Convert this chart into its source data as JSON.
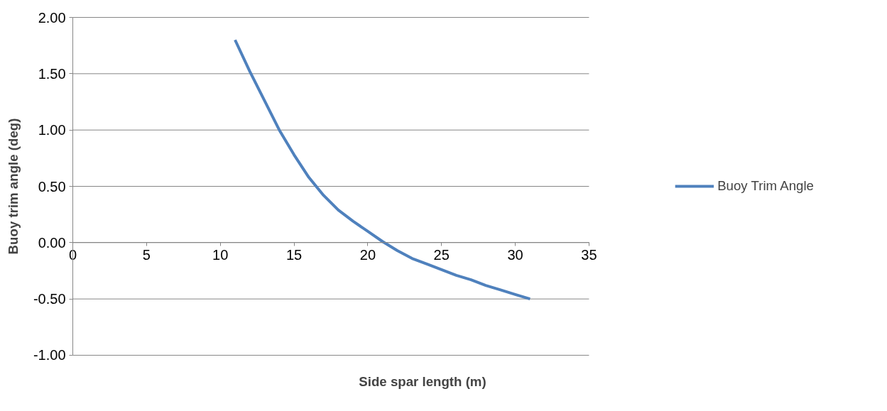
{
  "chart_data": {
    "type": "line",
    "xlabel": "Side spar length (m)",
    "ylabel": "Buoy trim angle (deg)",
    "xlim": [
      0,
      35
    ],
    "xticks": [
      0,
      5,
      10,
      15,
      20,
      25,
      30,
      35
    ],
    "ylim": [
      -1.0,
      2.0
    ],
    "yticks": [
      {
        "value": -1.0,
        "label": "-1.00"
      },
      {
        "value": -0.5,
        "label": "-0.50"
      },
      {
        "value": 0,
        "label": "0.00"
      },
      {
        "value": 0.5,
        "label": "0.50"
      },
      {
        "value": 1.0,
        "label": "1.00"
      },
      {
        "value": 1.5,
        "label": "1.50"
      },
      {
        "value": 2.0,
        "label": "2.00"
      }
    ],
    "grid": "y",
    "legend": "right",
    "marker": "none",
    "line_style": "solid",
    "series": [
      {
        "name": "Buoy Trim Angle",
        "color": "#4f81bd",
        "x": [
          11,
          12,
          13,
          14,
          15,
          16,
          17,
          18,
          19,
          20,
          21,
          22,
          23,
          24,
          25,
          26,
          27,
          28,
          29,
          30,
          31
        ],
        "values": [
          1.8,
          1.52,
          1.26,
          1.0,
          0.78,
          0.58,
          0.42,
          0.29,
          0.19,
          0.1,
          0.01,
          -0.07,
          -0.14,
          -0.19,
          -0.24,
          -0.29,
          -0.33,
          -0.38,
          -0.42,
          -0.46,
          -0.5
        ]
      }
    ]
  }
}
